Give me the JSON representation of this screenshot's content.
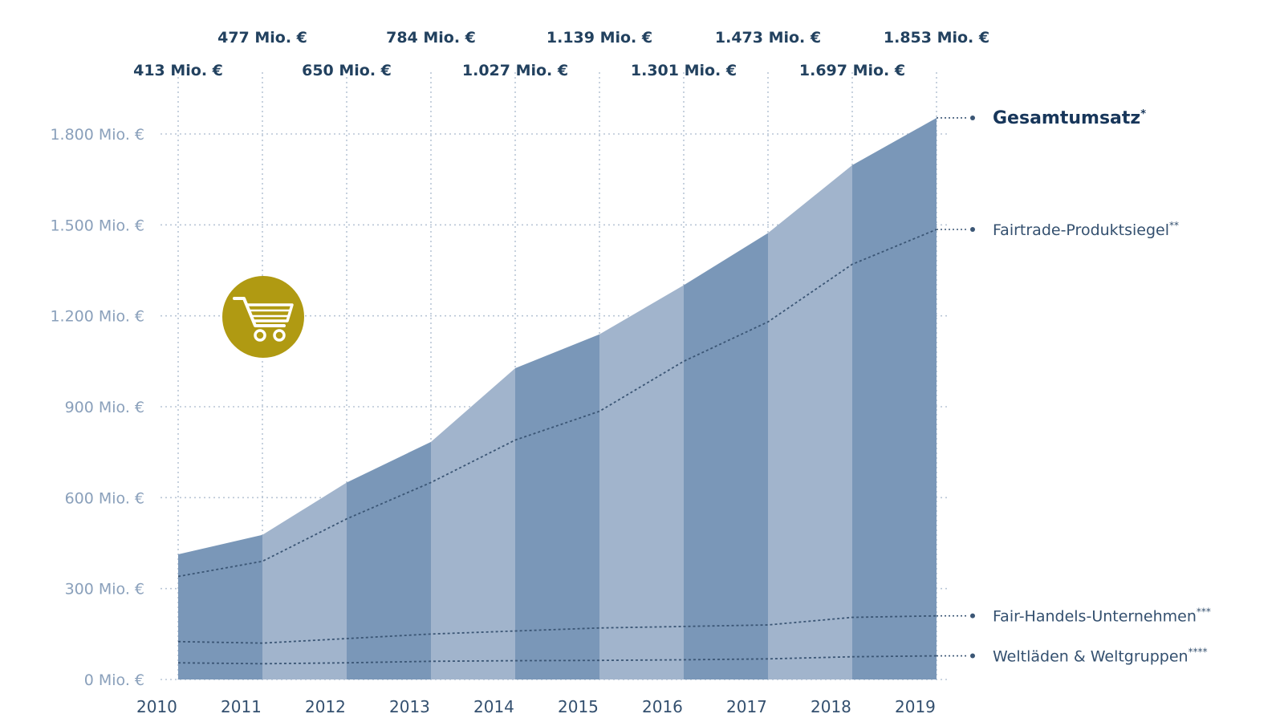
{
  "chart_data": {
    "type": "area",
    "categories": [
      "2010",
      "2011",
      "2012",
      "2013",
      "2014",
      "2015",
      "2016",
      "2017",
      "2018",
      "2019"
    ],
    "y_tick_labels": [
      "0 Mio. €",
      "300 Mio. €",
      "600 Mio. €",
      "900 Mio. €",
      "1.200 Mio. €",
      "1.500 Mio. €",
      "1.800 Mio. €"
    ],
    "y_ticks": [
      0,
      300,
      600,
      900,
      1200,
      1500,
      1800
    ],
    "ylim": [
      0,
      1900
    ],
    "grid": true,
    "legend_placement": "right",
    "value_labels": [
      "413 Mio. €",
      "477 Mio. €",
      "650 Mio. €",
      "784 Mio. €",
      "1.027 Mio. €",
      "1.139 Mio. €",
      "1.301 Mio. €",
      "1.473 Mio. €",
      "1.697 Mio. €",
      "1.853 Mio. €"
    ],
    "series": [
      {
        "name": "Gesamtumsatz",
        "marker": "*",
        "values": [
          413,
          477,
          650,
          784,
          1027,
          1139,
          1301,
          1473,
          1697,
          1853
        ]
      },
      {
        "name": "Fairtrade-Produktsiegel",
        "marker": "**",
        "values": [
          340,
          390,
          530,
          650,
          790,
          885,
          1050,
          1180,
          1370,
          1485
        ]
      },
      {
        "name": "Fair-Handels-Unternehmen",
        "marker": "***",
        "values": [
          125,
          120,
          135,
          150,
          160,
          170,
          175,
          180,
          205,
          210
        ]
      },
      {
        "name": "Weltläden & Weltgruppen",
        "marker": "****",
        "values": [
          55,
          52,
          55,
          60,
          62,
          63,
          65,
          68,
          75,
          78
        ]
      }
    ],
    "colors": {
      "dark_band": "#7a97b8",
      "light_band": "#a1b4cc",
      "line": "#3b5675",
      "grid": "#b9c6d6",
      "accent": "#b09a12"
    }
  },
  "icons": {
    "badge": "shopping-cart-icon"
  }
}
